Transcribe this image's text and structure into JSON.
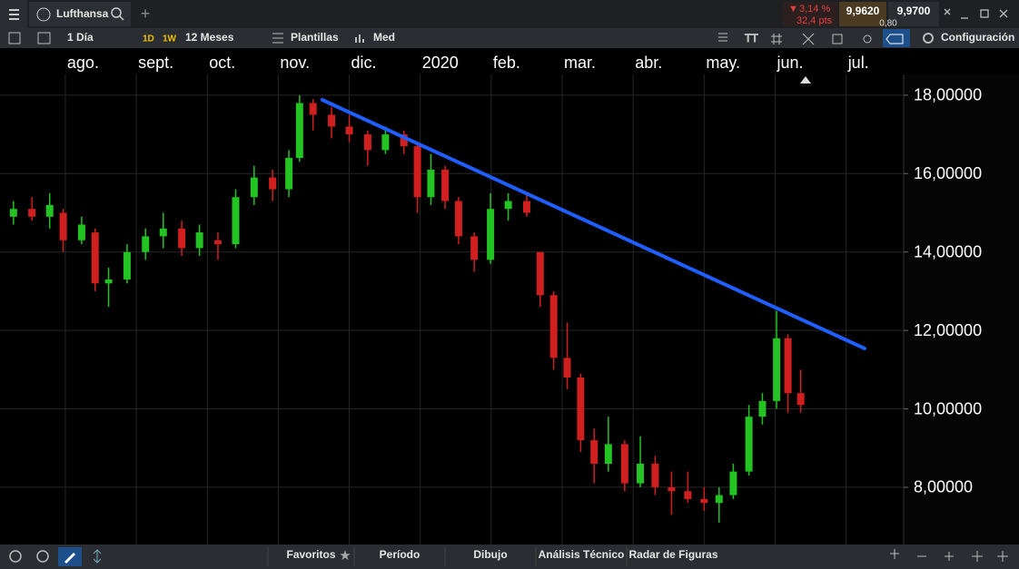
{
  "header": {
    "tab": "Lufthansa",
    "change_pct": "3,14 %",
    "change_pts": "32,4 pts",
    "bid": "9,9620",
    "spread": "0,80",
    "ask": "9,9700"
  },
  "toolbar": {
    "interval": "1 Día",
    "quick_1": "1D",
    "quick_2": "1W",
    "range": "12 Meses",
    "templates": "Plantillas",
    "price_type": "Med",
    "settings": "Configuración"
  },
  "bottom_bar": {
    "tabs": [
      "Favoritos",
      "Período",
      "Dibujo",
      "Análisis Técnico",
      "Radar de Figuras"
    ]
  },
  "chart_data": {
    "type": "candlestick",
    "xlim": [
      -0.92,
      11.81
    ],
    "xticks": [
      {
        "value": 0,
        "label": "ago."
      },
      {
        "value": 1,
        "label": "sept."
      },
      {
        "value": 2,
        "label": "oct."
      },
      {
        "value": 3,
        "label": "nov."
      },
      {
        "value": 4,
        "label": "dic."
      },
      {
        "value": 5,
        "label": "2020"
      },
      {
        "value": 6,
        "label": "feb."
      },
      {
        "value": 7,
        "label": "mar."
      },
      {
        "value": 8,
        "label": "abr."
      },
      {
        "value": 9,
        "label": "may."
      },
      {
        "value": 10,
        "label": "jun."
      },
      {
        "value": 11,
        "label": "jul."
      }
    ],
    "ylim": [
      6.54,
      18.53
    ],
    "yticks": [
      {
        "value": 8,
        "label": "8,00000"
      },
      {
        "value": 10,
        "label": "10,00000"
      },
      {
        "value": 12,
        "label": "12,00000"
      },
      {
        "value": 14,
        "label": "14,00000"
      },
      {
        "value": 16,
        "label": "16,00000"
      },
      {
        "value": 18,
        "label": "18,00000"
      }
    ],
    "grid": true,
    "up_color": "#22c322",
    "down_color": "#d01f1f",
    "candles": {
      "x": [
        -0.73,
        -0.47,
        -0.22,
        -0.03,
        0.23,
        0.42,
        0.61,
        0.87,
        1.13,
        1.38,
        1.64,
        1.89,
        2.15,
        2.4,
        2.66,
        2.92,
        3.15,
        3.3,
        3.49,
        3.75,
        4.0,
        4.26,
        4.51,
        4.77,
        4.96,
        5.15,
        5.35,
        5.54,
        5.76,
        5.99,
        6.24,
        6.5,
        6.69,
        6.88,
        7.07,
        7.26,
        7.45,
        7.65,
        7.88,
        8.1,
        8.31,
        8.54,
        8.77,
        9.0,
        9.21,
        9.41,
        9.63,
        9.82,
        10.02,
        10.18,
        10.36
      ],
      "open": [
        14.9,
        15.1,
        14.9,
        15.0,
        14.3,
        14.5,
        13.2,
        13.3,
        14.0,
        14.4,
        14.6,
        14.1,
        14.3,
        14.2,
        15.4,
        15.9,
        15.6,
        16.4,
        17.8,
        17.5,
        17.2,
        17.0,
        16.6,
        17.0,
        16.7,
        15.4,
        16.1,
        15.3,
        14.4,
        13.8,
        15.1,
        15.3,
        14.0,
        12.9,
        11.3,
        10.8,
        9.2,
        8.6,
        9.1,
        8.1,
        8.6,
        8.0,
        7.9,
        7.7,
        7.6,
        7.8,
        8.4,
        9.8,
        10.2,
        11.8,
        10.4
      ],
      "high": [
        15.3,
        15.4,
        15.5,
        15.1,
        14.9,
        14.6,
        13.6,
        14.2,
        14.6,
        15.0,
        14.8,
        14.7,
        14.5,
        15.6,
        16.2,
        16.1,
        16.6,
        18.0,
        17.9,
        17.7,
        17.5,
        17.1,
        17.2,
        17.1,
        16.8,
        16.5,
        16.2,
        15.4,
        14.5,
        15.5,
        15.5,
        15.5,
        14.0,
        13.0,
        12.2,
        10.9,
        9.5,
        9.8,
        9.2,
        9.3,
        8.8,
        8.4,
        8.4,
        8.0,
        8.0,
        8.6,
        10.1,
        10.4,
        12.5,
        11.9,
        11.0
      ],
      "low": [
        14.7,
        14.8,
        14.6,
        14.0,
        14.2,
        13.0,
        12.6,
        13.2,
        13.8,
        14.1,
        13.9,
        13.9,
        13.8,
        14.1,
        15.2,
        15.3,
        15.4,
        16.3,
        17.1,
        16.9,
        16.8,
        16.2,
        16.5,
        16.5,
        15.0,
        15.2,
        15.1,
        14.2,
        13.5,
        13.7,
        14.8,
        14.9,
        12.6,
        11.0,
        10.5,
        8.9,
        8.1,
        8.4,
        7.9,
        8.0,
        7.8,
        7.3,
        7.6,
        7.4,
        7.1,
        7.7,
        8.3,
        9.6,
        10.0,
        9.9,
        9.9
      ],
      "close": [
        15.1,
        14.9,
        15.2,
        14.3,
        14.7,
        13.2,
        13.3,
        14.0,
        14.4,
        14.6,
        14.1,
        14.5,
        14.2,
        15.4,
        15.9,
        15.6,
        16.4,
        17.8,
        17.5,
        17.2,
        17.0,
        16.6,
        17.0,
        16.7,
        15.4,
        16.1,
        15.3,
        14.4,
        13.8,
        15.1,
        15.3,
        15.0,
        12.9,
        11.3,
        10.8,
        9.2,
        8.6,
        9.1,
        8.1,
        8.6,
        8.0,
        7.9,
        7.7,
        7.6,
        7.8,
        8.4,
        9.8,
        10.2,
        11.8,
        10.4,
        10.1
      ]
    },
    "trendline": {
      "x": [
        3.62,
        11.26
      ],
      "y": [
        17.88,
        11.54
      ],
      "color": "#1f5fff"
    }
  }
}
